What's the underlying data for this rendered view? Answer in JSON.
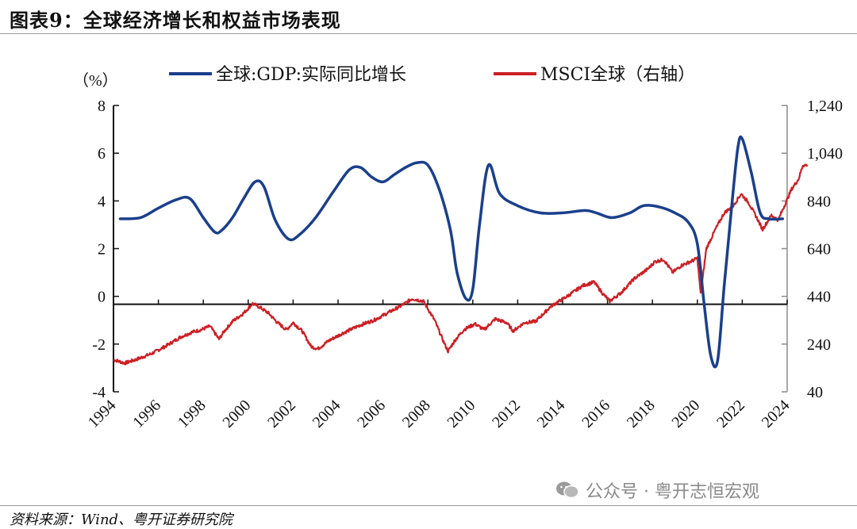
{
  "figure_title": "图表9：全球经济增长和权益市场表现",
  "source_note": "资料来源：Wind、粤开证券研究院",
  "watermark": "公众号 · 粤开志恒宏观",
  "colors": {
    "gdp": "#1a3f8c",
    "msci": "#cc1f24",
    "axis": "#111111",
    "right_axis": "#8c8c8c"
  },
  "chart_data": {
    "type": "line",
    "title": "全球经济增长和权益市场表现",
    "left_unit": "（%）",
    "y_left": {
      "min": -4,
      "max": 8,
      "ticks": [
        "8",
        "6",
        "4",
        "2",
        "0",
        "-2",
        "-4"
      ]
    },
    "y_right": {
      "min": 40,
      "max": 1240,
      "ticks": [
        "1,240",
        "1,040",
        "840",
        "640",
        "440",
        "240",
        "40"
      ]
    },
    "x_range": [
      1994,
      2024
    ],
    "x_ticks": [
      "1994",
      "1996",
      "1998",
      "2000",
      "2002",
      "2004",
      "2006",
      "2008",
      "2010",
      "2012",
      "2014",
      "2016",
      "2018",
      "2020",
      "2022",
      "2024"
    ],
    "legend": {
      "placement": "top"
    },
    "series": [
      {
        "name": "全球:GDP:实际同比增长",
        "axis": "left",
        "x": [
          1994.3,
          1995.2,
          1996.0,
          1996.8,
          1997.4,
          1998.0,
          1998.5,
          1998.8,
          1999.3,
          1999.8,
          2000.3,
          2000.7,
          2001.2,
          2001.8,
          2002.3,
          2003.0,
          2003.8,
          2004.5,
          2005.0,
          2005.5,
          2006.0,
          2006.5,
          2007.0,
          2007.5,
          2008.0,
          2008.5,
          2009.0,
          2009.3,
          2009.7,
          2010.0,
          2010.3,
          2010.7,
          2011.2,
          2012.0,
          2013.0,
          2014.0,
          2015.0,
          2015.5,
          2016.2,
          2017.0,
          2017.6,
          2018.3,
          2019.0,
          2019.6,
          2020.0,
          2020.3,
          2020.6,
          2020.9,
          2021.2,
          2021.5,
          2021.8,
          2022.0,
          2022.4,
          2022.8,
          2023.2,
          2023.8
        ],
        "values": [
          3.25,
          3.3,
          3.7,
          4.05,
          4.1,
          3.3,
          2.7,
          2.75,
          3.3,
          4.1,
          4.8,
          4.6,
          3.2,
          2.4,
          2.6,
          3.3,
          4.4,
          5.3,
          5.4,
          5.0,
          4.8,
          5.1,
          5.4,
          5.6,
          5.5,
          4.5,
          2.8,
          1.0,
          -0.1,
          0.3,
          3.0,
          5.5,
          4.3,
          3.8,
          3.5,
          3.5,
          3.6,
          3.5,
          3.3,
          3.5,
          3.8,
          3.75,
          3.5,
          3.1,
          2.2,
          -0.3,
          -2.5,
          -2.7,
          0.5,
          3.5,
          6.2,
          6.6,
          5.2,
          3.5,
          3.25,
          3.25
        ]
      },
      {
        "name": "MSCI全球（右轴）",
        "axis": "right",
        "x": [
          1994.0,
          1994.5,
          1995.0,
          1995.7,
          1996.3,
          1997.0,
          1997.5,
          1997.9,
          1998.3,
          1998.7,
          1998.9,
          1999.3,
          1999.8,
          2000.2,
          2000.5,
          2000.9,
          2001.3,
          2001.7,
          2002.0,
          2002.4,
          2002.8,
          2003.1,
          2003.6,
          2004.2,
          2005.0,
          2005.6,
          2006.3,
          2006.8,
          2007.3,
          2007.8,
          2008.3,
          2008.7,
          2008.9,
          2009.2,
          2009.6,
          2010.1,
          2010.5,
          2011.0,
          2011.5,
          2011.8,
          2012.3,
          2012.8,
          2013.5,
          2014.2,
          2014.9,
          2015.4,
          2015.8,
          2016.1,
          2016.6,
          2017.2,
          2017.8,
          2018.1,
          2018.5,
          2018.9,
          2019.3,
          2019.8,
          2020.0,
          2020.15,
          2020.4,
          2020.8,
          2021.2,
          2021.6,
          2021.95,
          2022.3,
          2022.7,
          2022.9,
          2023.3,
          2023.6,
          2023.9,
          2024.2,
          2024.5,
          2024.7,
          2024.9
        ],
        "values": [
          175,
          160,
          175,
          200,
          230,
          270,
          290,
          300,
          315,
          260,
          290,
          335,
          370,
          410,
          395,
          370,
          330,
          300,
          330,
          295,
          230,
          220,
          255,
          285,
          320,
          340,
          375,
          400,
          430,
          420,
          340,
          250,
          210,
          255,
          300,
          325,
          300,
          345,
          330,
          295,
          330,
          335,
          400,
          440,
          485,
          500,
          450,
          420,
          455,
          515,
          555,
          585,
          595,
          540,
          570,
          590,
          600,
          450,
          640,
          720,
          790,
          820,
          870,
          830,
          760,
          720,
          780,
          760,
          825,
          890,
          930,
          990,
          990
        ]
      }
    ]
  }
}
